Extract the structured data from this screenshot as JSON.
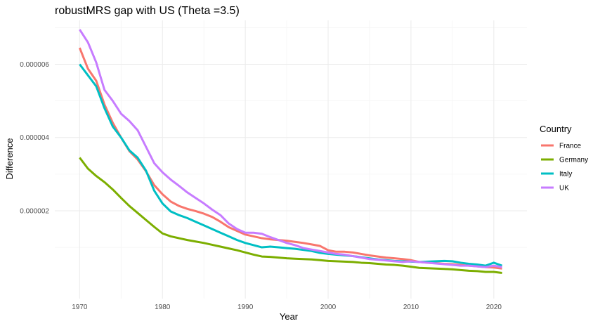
{
  "chart_data": {
    "type": "line",
    "title": "robustMRS gap with US (Theta =3.5)",
    "xlabel": "Year",
    "ylabel": "Difference",
    "xlim": [
      1967,
      2024
    ],
    "ylim": [
      -4e-07,
      7.2e-06
    ],
    "x_ticks": [
      1970,
      1980,
      1990,
      2000,
      2010,
      2020
    ],
    "x_tick_labels": [
      "1970",
      "1980",
      "1990",
      "2000",
      "2010",
      "2020"
    ],
    "y_ticks": [
      2e-06,
      4e-06,
      6e-06
    ],
    "y_tick_labels": [
      "0.000002",
      "0.000004",
      "0.000006"
    ],
    "grid": true,
    "legend": {
      "title": "Country",
      "position": "right"
    },
    "x": [
      1970,
      1971,
      1972,
      1973,
      1974,
      1975,
      1976,
      1977,
      1978,
      1979,
      1980,
      1981,
      1982,
      1983,
      1984,
      1985,
      1986,
      1987,
      1988,
      1989,
      1990,
      1991,
      1992,
      1993,
      1994,
      1995,
      1996,
      1997,
      1998,
      1999,
      2000,
      2001,
      2002,
      2003,
      2004,
      2005,
      2006,
      2007,
      2008,
      2009,
      2010,
      2011,
      2012,
      2013,
      2014,
      2015,
      2016,
      2017,
      2018,
      2019,
      2020,
      2021
    ],
    "series": [
      {
        "name": "France",
        "color": "#F8766D",
        "values": [
          6.45e-06,
          5.88e-06,
          5.55e-06,
          4.9e-06,
          4.4e-06,
          4e-06,
          3.63e-06,
          3.4e-06,
          3.08e-06,
          2.7e-06,
          2.45e-06,
          2.25e-06,
          2.13e-06,
          2.05e-06,
          1.99e-06,
          1.92e-06,
          1.83e-06,
          1.7e-06,
          1.55e-06,
          1.45e-06,
          1.35e-06,
          1.3e-06,
          1.25e-06,
          1.22e-06,
          1.2e-06,
          1.18e-06,
          1.15e-06,
          1.12e-06,
          1.08e-06,
          1.04e-06,
          9.2e-07,
          8.8e-07,
          8.8e-07,
          8.6e-07,
          8.2e-07,
          7.8e-07,
          7.5e-07,
          7.2e-07,
          7e-07,
          6.8e-07,
          6.5e-07,
          6e-07,
          5.8e-07,
          5.7e-07,
          5.5e-07,
          5.4e-07,
          5.2e-07,
          5e-07,
          4.8e-07,
          4.6e-07,
          4.5e-07,
          4.2e-07
        ]
      },
      {
        "name": "Germany",
        "color": "#7CAE00",
        "values": [
          3.45e-06,
          3.15e-06,
          2.95e-06,
          2.78e-06,
          2.58e-06,
          2.35e-06,
          2.13e-06,
          1.94e-06,
          1.75e-06,
          1.56e-06,
          1.38e-06,
          1.3e-06,
          1.25e-06,
          1.2e-06,
          1.16e-06,
          1.12e-06,
          1.07e-06,
          1.02e-06,
          9.7e-07,
          9.2e-07,
          8.6e-07,
          8e-07,
          7.5e-07,
          7.4e-07,
          7.2e-07,
          7e-07,
          6.9e-07,
          6.8e-07,
          6.7e-07,
          6.5e-07,
          6.3e-07,
          6.2e-07,
          6.1e-07,
          6e-07,
          5.8e-07,
          5.7e-07,
          5.5e-07,
          5.3e-07,
          5.2e-07,
          5e-07,
          4.7e-07,
          4.4e-07,
          4.3e-07,
          4.2e-07,
          4.1e-07,
          4e-07,
          3.8e-07,
          3.6e-07,
          3.5e-07,
          3.3e-07,
          3.3e-07,
          3e-07
        ]
      },
      {
        "name": "Italy",
        "color": "#00BFC4",
        "values": [
          6e-06,
          5.7e-06,
          5.4e-06,
          4.8e-06,
          4.3e-06,
          4e-06,
          3.65e-06,
          3.45e-06,
          3.1e-06,
          2.55e-06,
          2.2e-06,
          1.98e-06,
          1.88e-06,
          1.8e-06,
          1.7e-06,
          1.6e-06,
          1.5e-06,
          1.4e-06,
          1.3e-06,
          1.2e-06,
          1.12e-06,
          1.06e-06,
          1e-06,
          1.02e-06,
          1e-06,
          9.8e-07,
          9.6e-07,
          9.3e-07,
          9e-07,
          8.5e-07,
          8.2e-07,
          8e-07,
          7.8e-07,
          7.6e-07,
          7.3e-07,
          7e-07,
          6.7e-07,
          6.5e-07,
          6.3e-07,
          6.2e-07,
          6.1e-07,
          6e-07,
          6.1e-07,
          6.2e-07,
          6.3e-07,
          6.2e-07,
          5.8e-07,
          5.5e-07,
          5.3e-07,
          5e-07,
          5.8e-07,
          5e-07
        ]
      },
      {
        "name": "UK",
        "color": "#C77CFF",
        "values": [
          6.95e-06,
          6.6e-06,
          6.05e-06,
          5.3e-06,
          5e-06,
          4.65e-06,
          4.45e-06,
          4.2e-06,
          3.75e-06,
          3.3e-06,
          3.05e-06,
          2.85e-06,
          2.68e-06,
          2.5e-06,
          2.35e-06,
          2.2e-06,
          2.03e-06,
          1.88e-06,
          1.65e-06,
          1.5e-06,
          1.4e-06,
          1.4e-06,
          1.37e-06,
          1.28e-06,
          1.2e-06,
          1.12e-06,
          1.06e-06,
          9.8e-07,
          9.4e-07,
          9e-07,
          8.6e-07,
          8.2e-07,
          8e-07,
          7.6e-07,
          7.2e-07,
          6.8e-07,
          6.6e-07,
          6.4e-07,
          6.2e-07,
          6e-07,
          6.2e-07,
          6e-07,
          5.8e-07,
          5.6e-07,
          5.4e-07,
          5.2e-07,
          5e-07,
          5e-07,
          4.8e-07,
          4.6e-07,
          5e-07,
          4.6e-07
        ]
      }
    ]
  }
}
